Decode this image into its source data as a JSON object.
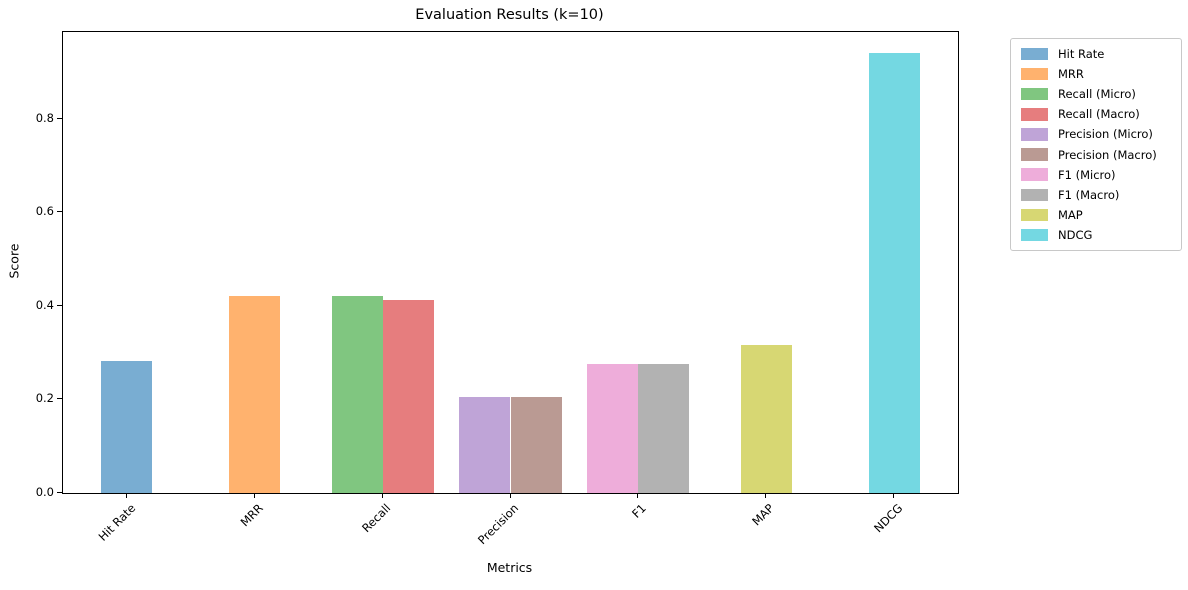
{
  "chart_data": {
    "type": "bar",
    "title": "Evaluation Results (k=10)",
    "xlabel": "Metrics",
    "ylabel": "Score",
    "ylim": [
      0,
      0.985
    ],
    "yticks": [
      "0.0",
      "0.2",
      "0.4",
      "0.6",
      "0.8"
    ],
    "grid": false,
    "bar_width_fraction": 0.4,
    "categories": [
      "Hit Rate",
      "MRR",
      "Recall",
      "Precision",
      "F1",
      "MAP",
      "NDCG"
    ],
    "groups": [
      {
        "category": "Hit Rate",
        "bars": [
          {
            "series": "Hit Rate",
            "value": 0.283,
            "color": "#79ADD2"
          }
        ]
      },
      {
        "category": "MRR",
        "bars": [
          {
            "series": "MRR",
            "value": 0.42,
            "color": "#FFB26E"
          }
        ]
      },
      {
        "category": "Recall",
        "bars": [
          {
            "series": "Recall (Micro)",
            "value": 0.422,
            "color": "#80C680"
          },
          {
            "series": "Recall (Macro)",
            "value": 0.412,
            "color": "#E67D7E"
          }
        ]
      },
      {
        "category": "Precision",
        "bars": [
          {
            "series": "Precision (Micro)",
            "value": 0.206,
            "color": "#BFA4D7"
          },
          {
            "series": "Precision (Macro)",
            "value": 0.205,
            "color": "#BA9A93"
          }
        ]
      },
      {
        "category": "F1",
        "bars": [
          {
            "series": "F1 (Micro)",
            "value": 0.275,
            "color": "#EEADDA"
          },
          {
            "series": "F1 (Macro)",
            "value": 0.275,
            "color": "#B2B2B2"
          }
        ]
      },
      {
        "category": "MAP",
        "bars": [
          {
            "series": "MAP",
            "value": 0.317,
            "color": "#D7D773"
          }
        ]
      },
      {
        "category": "NDCG",
        "bars": [
          {
            "series": "NDCG",
            "value": 0.94,
            "color": "#74D8E2"
          }
        ]
      }
    ],
    "legend": {
      "position": "outside-upper-right",
      "entries": [
        {
          "label": "Hit Rate",
          "color": "#79ADD2"
        },
        {
          "label": "MRR",
          "color": "#FFB26E"
        },
        {
          "label": "Recall (Micro)",
          "color": "#80C680"
        },
        {
          "label": "Recall (Macro)",
          "color": "#E67D7E"
        },
        {
          "label": "Precision (Micro)",
          "color": "#BFA4D7"
        },
        {
          "label": "Precision (Macro)",
          "color": "#BA9A93"
        },
        {
          "label": "F1 (Micro)",
          "color": "#EEADDA"
        },
        {
          "label": "F1 (Macro)",
          "color": "#B2B2B2"
        },
        {
          "label": "MAP",
          "color": "#D7D773"
        },
        {
          "label": "NDCG",
          "color": "#74D8E2"
        }
      ]
    }
  }
}
